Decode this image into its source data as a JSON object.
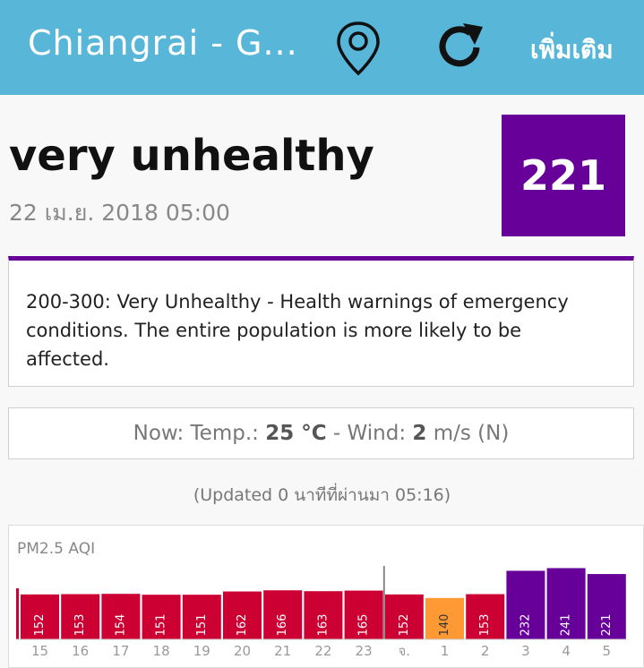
{
  "app_bar": {
    "title": "Chiangrai - G...",
    "location_icon": "map-pin-icon",
    "refresh_icon": "refresh-icon",
    "more_label": "เพิ่มเติม"
  },
  "status": {
    "label": "very unhealthy",
    "timestamp": "22 เม.ย. 2018 05:00",
    "aqi_value": "221",
    "color": "#660099"
  },
  "description": "200-300: Very Unhealthy - Health warnings of emergency conditions. The entire population is more likely to be affected.",
  "now": {
    "prefix": "Now: Temp.:",
    "temp": "25 °C",
    "wind_prefix": "- Wind:",
    "wind": "2",
    "wind_suffix": "m/s (N)"
  },
  "updated_text": "(Updated 0 นาทีที่ผ่านมา 05:16)",
  "chart_data": {
    "type": "bar",
    "title": "PM2.5 AQI",
    "categories": [
      "15",
      "16",
      "17",
      "18",
      "19",
      "20",
      "21",
      "22",
      "23",
      "จ.",
      "1",
      "2",
      "3",
      "4",
      "5"
    ],
    "values": [
      152,
      153,
      154,
      151,
      151,
      162,
      166,
      163,
      165,
      152,
      140,
      153,
      232,
      241,
      221
    ],
    "colors": {
      "unhealthy": "#cc0033",
      "sensitive": "#ff9933",
      "very_unhealthy": "#660099"
    }
  }
}
